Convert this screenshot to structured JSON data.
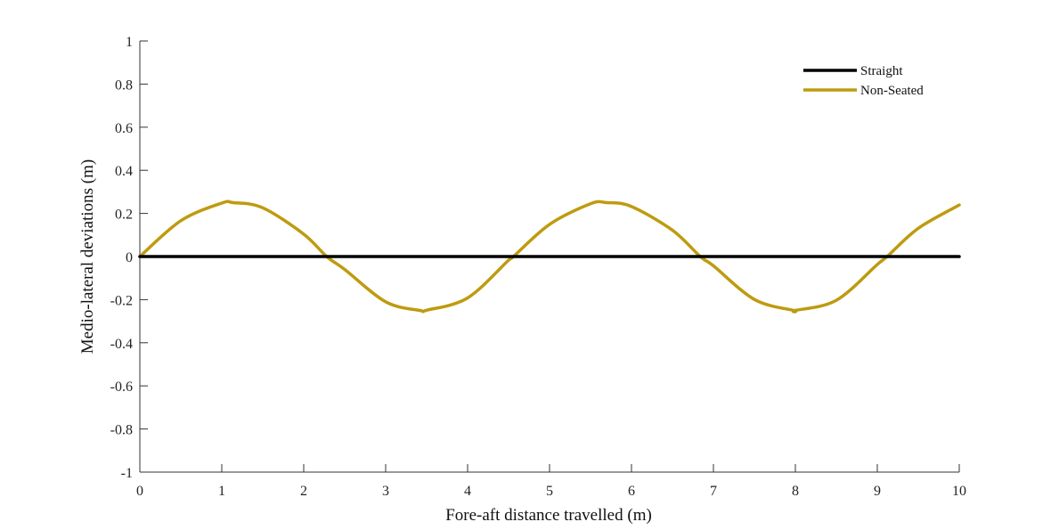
{
  "chart_data": {
    "type": "line",
    "title": "",
    "xlabel": "Fore-aft distance travelled (m)",
    "ylabel": "Medio-lateral deviations (m)",
    "xlim": [
      0,
      10
    ],
    "ylim": [
      -1,
      1
    ],
    "xticks": [
      "0",
      "1",
      "2",
      "3",
      "4",
      "5",
      "6",
      "7",
      "8",
      "9",
      "10"
    ],
    "yticks": [
      "1",
      "0.8",
      "0.6",
      "0.4",
      "0.2",
      "0",
      "-0.2",
      "-0.4",
      "-0.6",
      "-0.8",
      "-1"
    ],
    "grid": false,
    "legend_position": "top-right",
    "series": [
      {
        "name": "Straight",
        "color": "#000000",
        "x": [
          0,
          10
        ],
        "y": [
          0,
          0
        ]
      },
      {
        "name": "Non-Seated",
        "color": "#BE9B0F",
        "x": [
          0,
          0.5,
          1.0,
          1.14,
          1.5,
          2.0,
          2.28,
          2.5,
          3.0,
          3.42,
          3.5,
          4.0,
          4.5,
          4.56,
          5.0,
          5.5,
          5.7,
          6.0,
          6.5,
          6.84,
          7.0,
          7.5,
          7.98,
          8.0,
          8.5,
          9.0,
          9.12,
          9.5,
          10.0
        ],
        "y": [
          0,
          0.166,
          0.248,
          0.25,
          0.226,
          0.104,
          0,
          -0.06,
          -0.21,
          -0.25,
          -0.249,
          -0.192,
          -0.017,
          0,
          0.149,
          0.245,
          0.25,
          0.232,
          0.122,
          0,
          -0.043,
          -0.199,
          -0.25,
          -0.25,
          -0.203,
          -0.037,
          0,
          0.131,
          0.239
        ]
      }
    ]
  }
}
